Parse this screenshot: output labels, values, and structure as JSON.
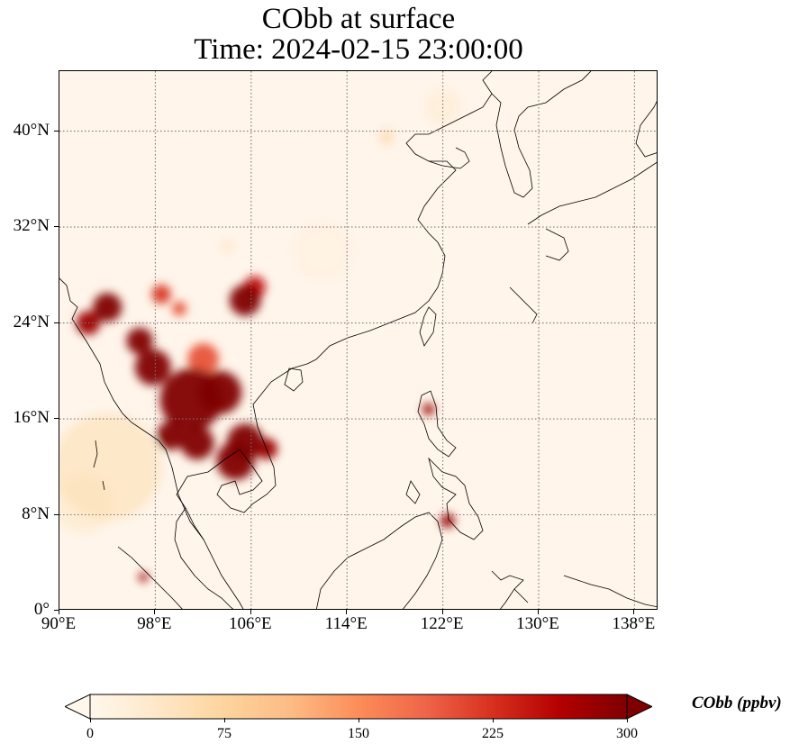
{
  "title": {
    "line1": "CObb at surface",
    "line2": "Time: 2024-02-15 23:00:00"
  },
  "map": {
    "projection": "PlateCarree",
    "extent": {
      "lon_min": 90,
      "lon_max": 140,
      "lat_min": 0,
      "lat_max": 45
    },
    "gridlines": "dotted gray",
    "coastlines": true,
    "lat_ticks": [
      {
        "value": 0,
        "label": "0°"
      },
      {
        "value": 8,
        "label": "8°N"
      },
      {
        "value": 16,
        "label": "16°N"
      },
      {
        "value": 24,
        "label": "24°N"
      },
      {
        "value": 32,
        "label": "32°N"
      },
      {
        "value": 40,
        "label": "40°N"
      }
    ],
    "lon_ticks": [
      {
        "value": 90,
        "label": "90°E"
      },
      {
        "value": 98,
        "label": "98°E"
      },
      {
        "value": 106,
        "label": "106°E"
      },
      {
        "value": 114,
        "label": "114°E"
      },
      {
        "value": 122,
        "label": "122°E"
      },
      {
        "value": 130,
        "label": "130°E"
      },
      {
        "value": 138,
        "label": "138°E"
      }
    ],
    "field_hotspots": [
      {
        "lon": 101.0,
        "lat": 17.6,
        "r": 2.6,
        "value": 320
      },
      {
        "lon": 103.4,
        "lat": 18.2,
        "r": 1.8,
        "value": 310
      },
      {
        "lon": 97.8,
        "lat": 20.3,
        "r": 1.5,
        "value": 300
      },
      {
        "lon": 96.7,
        "lat": 22.5,
        "r": 1.1,
        "value": 300
      },
      {
        "lon": 94.0,
        "lat": 25.3,
        "r": 1.2,
        "value": 300
      },
      {
        "lon": 92.4,
        "lat": 24.0,
        "r": 1.0,
        "value": 280
      },
      {
        "lon": 99.3,
        "lat": 14.6,
        "r": 1.2,
        "value": 300
      },
      {
        "lon": 101.5,
        "lat": 14.0,
        "r": 1.4,
        "value": 300
      },
      {
        "lon": 104.7,
        "lat": 12.5,
        "r": 1.6,
        "value": 320
      },
      {
        "lon": 105.5,
        "lat": 14.1,
        "r": 1.5,
        "value": 310
      },
      {
        "lon": 107.3,
        "lat": 13.5,
        "r": 0.9,
        "value": 280
      },
      {
        "lon": 105.5,
        "lat": 25.9,
        "r": 1.3,
        "value": 300
      },
      {
        "lon": 106.3,
        "lat": 27.0,
        "r": 0.9,
        "value": 250
      },
      {
        "lon": 98.5,
        "lat": 26.4,
        "r": 0.8,
        "value": 220
      },
      {
        "lon": 100.0,
        "lat": 25.2,
        "r": 0.6,
        "value": 200
      },
      {
        "lon": 120.8,
        "lat": 16.8,
        "r": 0.5,
        "value": 280
      },
      {
        "lon": 122.4,
        "lat": 7.5,
        "r": 0.6,
        "value": 280
      },
      {
        "lon": 97.0,
        "lat": 2.8,
        "r": 0.4,
        "value": 280
      },
      {
        "lon": 117.3,
        "lat": 39.5,
        "r": 0.6,
        "value": 90
      },
      {
        "lon": 102.0,
        "lat": 21.0,
        "r": 1.3,
        "value": 200
      },
      {
        "lon": 104.0,
        "lat": 30.4,
        "r": 0.5,
        "value": 60
      },
      {
        "lon": 94.0,
        "lat": 12.0,
        "r": 4.5,
        "value": 60
      },
      {
        "lon": 92.0,
        "lat": 9.0,
        "r": 2.5,
        "value": 40
      },
      {
        "lon": 122.0,
        "lat": 42.0,
        "r": 1.5,
        "value": 30
      },
      {
        "lon": 112.0,
        "lat": 30.0,
        "r": 2.5,
        "value": 15
      }
    ]
  },
  "colorbar": {
    "label": "CObb (ppbv)",
    "vmin": 0,
    "vmax": 300,
    "extend": "both",
    "colormap": "OrRd",
    "ticks": [
      {
        "value": 0,
        "label": "0"
      },
      {
        "value": 75,
        "label": "75"
      },
      {
        "value": 150,
        "label": "150"
      },
      {
        "value": 225,
        "label": "225"
      },
      {
        "value": 300,
        "label": "300"
      }
    ],
    "colors": [
      "#fff7ec",
      "#fee8c8",
      "#fdd49e",
      "#fdbb84",
      "#fc8d59",
      "#ef6548",
      "#d7301f",
      "#b30000",
      "#7f0000"
    ]
  }
}
